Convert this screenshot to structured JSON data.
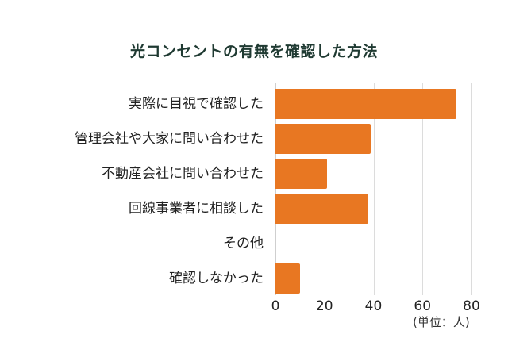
{
  "title": "光コンセントの有無を確認した方法",
  "unit_label": "(単位：人)",
  "colors": {
    "bar": "#e87722",
    "title": "#1f3a32",
    "grid": "#dcdcdc"
  },
  "chart_data": {
    "type": "bar",
    "orientation": "horizontal",
    "title": "光コンセントの有無を確認した方法",
    "categories": [
      "実際に目視で確認した",
      "管理会社や大家に問い合わせた",
      "不動産会社に問い合わせた",
      "回線事業者に相談した",
      "その他",
      "確認しなかった"
    ],
    "values": [
      74,
      39,
      21,
      38,
      0,
      10
    ],
    "xlabel": "(単位：人)",
    "ylabel": "",
    "xlim": [
      0,
      80
    ],
    "xticks": [
      "0",
      "20",
      "40",
      "60",
      "80"
    ],
    "grid": true,
    "legend": null
  }
}
